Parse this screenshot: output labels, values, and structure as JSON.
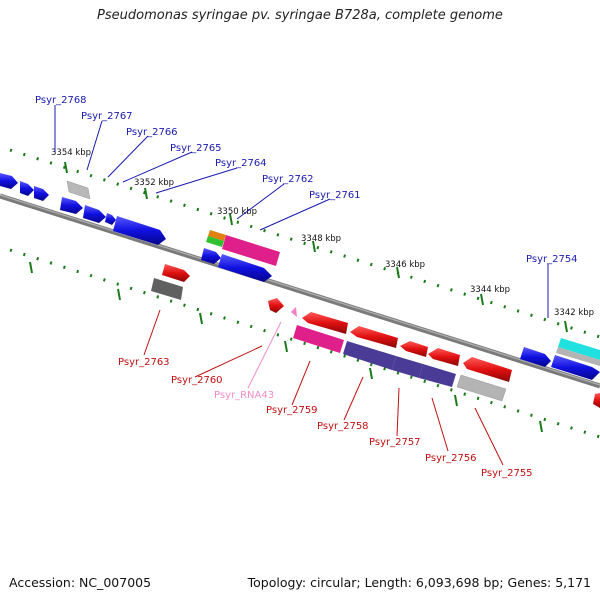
{
  "title": "Pseudomonas syringae pv. syringae B728a, complete genome",
  "footer": {
    "accession": "Accession: NC_007005",
    "summary": "Topology: circular; Length: 6,093,698 bp; Genes: 5,171"
  },
  "ticks": [
    "3354 kbp",
    "3352 kbp",
    "3350 kbp",
    "3348 kbp",
    "3346 kbp",
    "3344 kbp",
    "3342 kbp"
  ],
  "top_labels": [
    "Psyr_2768",
    "Psyr_2767",
    "Psyr_2766",
    "Psyr_2765",
    "Psyr_2764",
    "Psyr_2762",
    "Psyr_2761",
    "Psyr_2754"
  ],
  "bottom_labels": [
    "Psyr_2763",
    "Psyr_2760",
    "Psyr_RNA43",
    "Psyr_2759",
    "Psyr_2758",
    "Psyr_2757",
    "Psyr_2756",
    "Psyr_2755"
  ],
  "colors": {
    "forward_gene": "#1010e0",
    "reverse_gene": "#e01010",
    "magenta": "#e0208a",
    "purple": "#4a3c96",
    "grey": "#b4b4b4",
    "dark_grey": "#606060",
    "cyan": "#20e0e0",
    "orange": "#e08010",
    "green": "#30c030",
    "pink_rna": "#f080c0",
    "top_label_color": "#1a1ab0",
    "bottom_label_color": "#c01010",
    "rna_label_color": "#f08cc8",
    "tick_color": "#1a7a1a",
    "backbone": "#888888"
  }
}
